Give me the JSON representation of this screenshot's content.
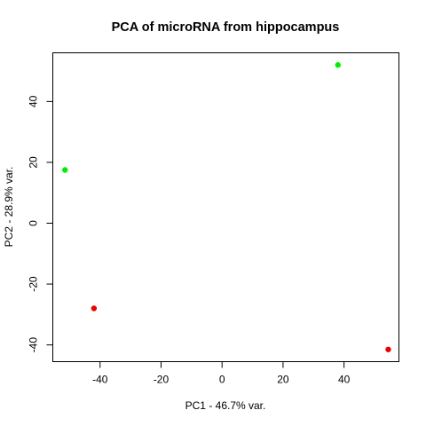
{
  "chart_data": {
    "type": "scatter",
    "title": "PCA of microRNA from hippocampus",
    "xlabel": "PC1 - 46.7% var.",
    "ylabel": "PC2 - 28.9% var.",
    "xlim": [
      -55.5,
      58
    ],
    "ylim": [
      -45.5,
      56
    ],
    "xticks": [
      -40,
      -20,
      0,
      20,
      40
    ],
    "yticks": [
      -40,
      -20,
      0,
      20,
      40
    ],
    "grid": false,
    "points": [
      {
        "x": -51.5,
        "y": 17.5,
        "color": "#00ee00"
      },
      {
        "x": 38.0,
        "y": 52.0,
        "color": "#00ee00"
      },
      {
        "x": -42.0,
        "y": -28.0,
        "color": "#ee0000"
      },
      {
        "x": 54.5,
        "y": -41.5,
        "color": "#ee0000"
      }
    ]
  }
}
